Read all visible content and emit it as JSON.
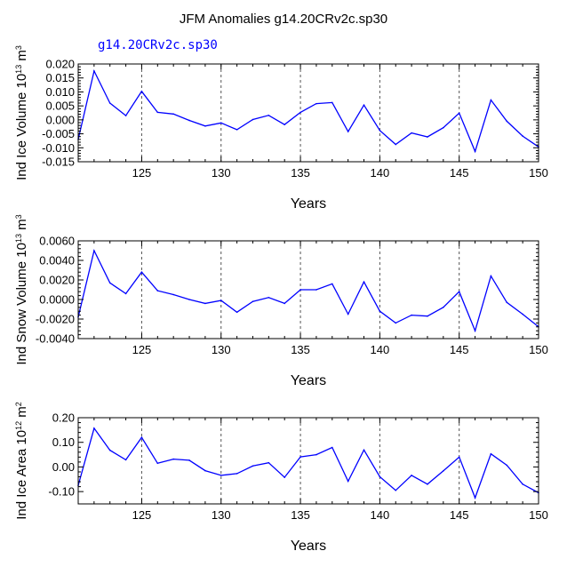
{
  "figure": {
    "title": "JFM Anomalies g14.20CRv2c.sp30",
    "legend_text": "g14.20CRv2c.sp30",
    "line_color": "#0000ff",
    "grid_color": "#555555"
  },
  "chart_data": [
    {
      "type": "line",
      "xlabel": "Years",
      "ylabel": "Ind Ice Volume 10",
      "ylabel_exp": "13",
      "ylabel_unit": " m",
      "ylabel_unit_exp": "3",
      "xlim": [
        121,
        150
      ],
      "ylim": [
        -0.015,
        0.02
      ],
      "x_ticks": [
        125,
        130,
        135,
        140,
        145,
        150
      ],
      "y_ticks": [
        "0.020",
        "0.015",
        "0.010",
        "0.005",
        "0.000",
        "-0.005",
        "-0.010",
        "-0.015"
      ],
      "grid": "vertical-dashed",
      "series": [
        {
          "x": [
            121,
            122,
            123,
            124,
            125,
            126,
            127,
            128,
            129,
            130,
            131,
            132,
            133,
            134,
            135,
            136,
            137,
            138,
            139,
            140,
            141,
            142,
            143,
            144,
            145,
            146,
            147,
            148,
            149,
            150
          ],
          "values": [
            -0.007,
            0.0175,
            0.006,
            0.0015,
            0.0102,
            0.0027,
            0.0021,
            -0.0002,
            -0.0022,
            -0.0011,
            -0.0035,
            0.0001,
            0.0016,
            -0.0017,
            0.0027,
            0.0058,
            0.0062,
            -0.0042,
            0.0053,
            -0.0038,
            -0.0088,
            -0.0047,
            -0.0061,
            -0.0028,
            0.0024,
            -0.0113,
            0.0071,
            -0.0005,
            -0.0058,
            -0.0097
          ]
        }
      ]
    },
    {
      "type": "line",
      "xlabel": "Years",
      "ylabel": "Ind Snow Volume 10",
      "ylabel_exp": "13",
      "ylabel_unit": " m",
      "ylabel_unit_exp": "3",
      "xlim": [
        121,
        150
      ],
      "ylim": [
        -0.004,
        0.006
      ],
      "x_ticks": [
        125,
        130,
        135,
        140,
        145,
        150
      ],
      "y_ticks": [
        "0.0060",
        "0.0040",
        "0.0020",
        "0.0000",
        "-0.0020",
        "-0.0040"
      ],
      "grid": "vertical-dashed",
      "series": [
        {
          "x": [
            121,
            122,
            123,
            124,
            125,
            126,
            127,
            128,
            129,
            130,
            131,
            132,
            133,
            134,
            135,
            136,
            137,
            138,
            139,
            140,
            141,
            142,
            143,
            144,
            145,
            146,
            147,
            148,
            149,
            150
          ],
          "values": [
            -0.0018,
            0.005,
            0.0017,
            0.0006,
            0.0028,
            0.0009,
            0.0005,
            0.0,
            -0.0004,
            -0.0001,
            -0.0013,
            -0.0002,
            0.0002,
            -0.0004,
            0.001,
            0.001,
            0.0016,
            -0.0015,
            0.0018,
            -0.0012,
            -0.0024,
            -0.0016,
            -0.0017,
            -0.0008,
            0.0008,
            -0.0032,
            0.0024,
            -0.0003,
            -0.0015,
            -0.0028
          ]
        }
      ]
    },
    {
      "type": "line",
      "xlabel": "Years",
      "ylabel": "Ind Ice Area 10",
      "ylabel_exp": "12",
      "ylabel_unit": " m",
      "ylabel_unit_exp": "2",
      "xlim": [
        121,
        150
      ],
      "ylim": [
        -0.15,
        0.2
      ],
      "x_ticks": [
        125,
        130,
        135,
        140,
        145,
        150
      ],
      "y_ticks": [
        "0.20",
        "0.10",
        "0.00",
        "-0.10"
      ],
      "grid": "vertical-dashed",
      "series": [
        {
          "x": [
            121,
            122,
            123,
            124,
            125,
            126,
            127,
            128,
            129,
            130,
            131,
            132,
            133,
            134,
            135,
            136,
            137,
            138,
            139,
            140,
            141,
            142,
            143,
            144,
            145,
            146,
            147,
            148,
            149,
            150
          ],
          "values": [
            -0.075,
            0.157,
            0.068,
            0.029,
            0.12,
            0.015,
            0.032,
            0.027,
            -0.015,
            -0.034,
            -0.027,
            0.004,
            0.017,
            -0.042,
            0.041,
            0.05,
            0.079,
            -0.058,
            0.069,
            -0.04,
            -0.095,
            -0.034,
            -0.07,
            -0.016,
            0.04,
            -0.125,
            0.053,
            0.007,
            -0.07,
            -0.105
          ]
        }
      ]
    }
  ]
}
